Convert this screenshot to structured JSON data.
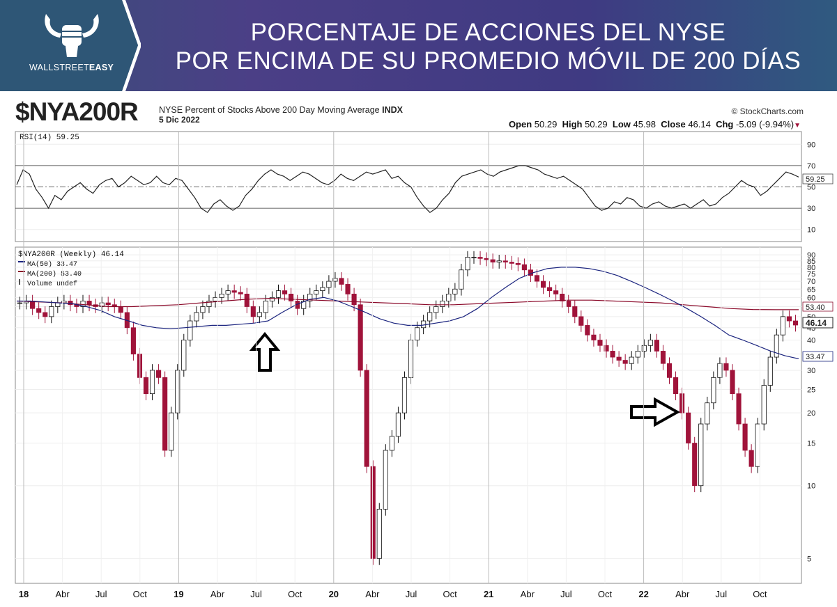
{
  "banner": {
    "title_line1": "PORCENTAJE DE ACCIONES DEL NYSE",
    "title_line2": "POR ENCIMA DE SU PROMEDIO MÓVIL DE 200 DÍAS",
    "brand_light": "WALLSTREET",
    "brand_bold": "EASY"
  },
  "header": {
    "ticker": "$NYA200R",
    "description": "NYSE Percent of Stocks Above 200 Day Moving Average",
    "exchange": "INDX",
    "date": "5 Dic 2022",
    "source": "© StockCharts.com",
    "open_label": "Open",
    "open": "50.29",
    "high_label": "High",
    "high": "50.29",
    "low_label": "Low",
    "low": "45.98",
    "close_label": "Close",
    "close": "46.14",
    "chg_label": "Chg",
    "chg": "-5.09 (-9.94%)"
  },
  "chart_data": [
    {
      "type": "line",
      "title": "RSI(14) 59.25",
      "ylim": [
        0,
        100
      ],
      "yticks": [
        10,
        30,
        50,
        70,
        90
      ],
      "reference_lines": [
        30,
        50,
        70
      ],
      "last_value": "59.25",
      "series": [
        {
          "values": [
            52,
            66,
            62,
            48,
            40,
            30,
            42,
            38,
            46,
            50,
            54,
            48,
            44,
            52,
            56,
            58,
            50,
            54,
            60,
            56,
            52,
            54,
            60,
            54,
            52,
            58,
            56,
            48,
            40,
            30,
            26,
            34,
            38,
            32,
            28,
            32,
            42,
            48,
            56,
            62,
            66,
            62,
            60,
            56,
            60,
            64,
            62,
            58,
            54,
            52,
            56,
            62,
            58,
            56,
            60,
            64,
            62,
            64,
            66,
            58,
            60,
            54,
            50,
            40,
            32,
            26,
            30,
            38,
            44,
            54,
            60,
            62,
            64,
            66,
            62,
            60,
            64,
            66,
            68,
            70,
            70,
            68,
            66,
            62,
            60,
            58,
            60,
            56,
            52,
            48,
            40,
            32,
            28,
            30,
            36,
            34,
            40,
            38,
            32,
            30,
            34,
            36,
            32,
            30,
            32,
            34,
            30,
            34,
            38,
            32,
            34,
            40,
            44,
            50,
            56,
            52,
            50,
            42,
            46,
            52,
            58,
            64,
            62,
            59.25
          ]
        }
      ]
    },
    {
      "type": "candlestick",
      "title": "$NYA200R (Weekly) 46.14",
      "y_scale": "log",
      "ylim": [
        4,
        95
      ],
      "yticks": [
        5,
        10,
        15,
        20,
        25,
        30,
        35,
        40,
        45,
        50,
        55,
        60,
        65,
        70,
        75,
        80,
        85,
        90
      ],
      "x_labels": [
        "18",
        "Abr",
        "Jul",
        "Oct",
        "19",
        "Abr",
        "Jul",
        "Oct",
        "20",
        "Abr",
        "Jul",
        "Oct",
        "21",
        "Abr",
        "Jul",
        "Oct",
        "22",
        "Abr",
        "Jul",
        "Oct"
      ],
      "legend": [
        {
          "name": "$NYA200R (Weekly) 46.14",
          "color": "#222222"
        },
        {
          "name": "MA(50) 33.47",
          "color": "#1a237e"
        },
        {
          "name": "MA(200) 53.40",
          "color": "#8b0a2a"
        },
        {
          "name": "Volume undef",
          "color": "#555555"
        }
      ],
      "price_labels": {
        "ma200": "53.40",
        "close": "46.14",
        "ma50": "33.47"
      },
      "close_values": [
        57,
        58,
        54,
        52,
        50,
        55,
        57,
        58,
        56,
        55,
        58,
        56,
        55,
        57,
        56,
        55,
        52,
        45,
        35,
        28,
        24,
        30,
        28,
        14,
        20,
        30,
        40,
        48,
        52,
        55,
        58,
        60,
        62,
        64,
        63,
        62,
        55,
        50,
        52,
        58,
        60,
        64,
        62,
        58,
        54,
        58,
        62,
        64,
        66,
        70,
        72,
        68,
        62,
        56,
        30,
        12,
        5,
        8,
        14,
        16,
        20,
        28,
        40,
        45,
        48,
        52,
        55,
        58,
        62,
        65,
        78,
        88,
        88,
        87,
        86,
        84,
        85,
        84,
        83,
        82,
        78,
        74,
        70,
        66,
        64,
        62,
        58,
        55,
        50,
        46,
        42,
        40,
        38,
        36,
        34,
        33,
        32,
        34,
        36,
        38,
        40,
        36,
        32,
        28,
        24,
        20,
        15,
        10,
        18,
        22,
        28,
        32,
        30,
        24,
        18,
        14,
        12,
        18,
        26,
        34,
        42,
        50,
        48,
        46.14
      ],
      "series": [
        {
          "name": "MA(50)",
          "values": [
            58,
            58,
            57.5,
            57,
            56.5,
            55,
            53,
            50,
            48,
            46,
            45,
            44.5,
            45,
            45.5,
            46,
            46,
            46.5,
            47,
            48,
            52,
            56,
            59,
            60,
            58,
            55,
            52,
            49,
            47,
            46,
            46,
            47,
            48,
            50,
            54,
            60,
            66,
            72,
            76,
            79,
            80,
            80,
            79,
            77,
            74,
            70,
            66,
            62,
            58,
            54,
            50,
            46,
            42,
            40,
            38,
            36,
            34.5,
            33.47
          ]
        },
        {
          "name": "MA(200)",
          "values": [
            58,
            57.5,
            57,
            56,
            55,
            55,
            55.5,
            56,
            57,
            58,
            59,
            59.5,
            59,
            58.5,
            58,
            57.5,
            57,
            56.5,
            56,
            56,
            56.5,
            57,
            57.5,
            58,
            58.5,
            58.5,
            58,
            57.5,
            57,
            56,
            55,
            54,
            53.5,
            53.4,
            53.4
          ]
        }
      ]
    }
  ]
}
